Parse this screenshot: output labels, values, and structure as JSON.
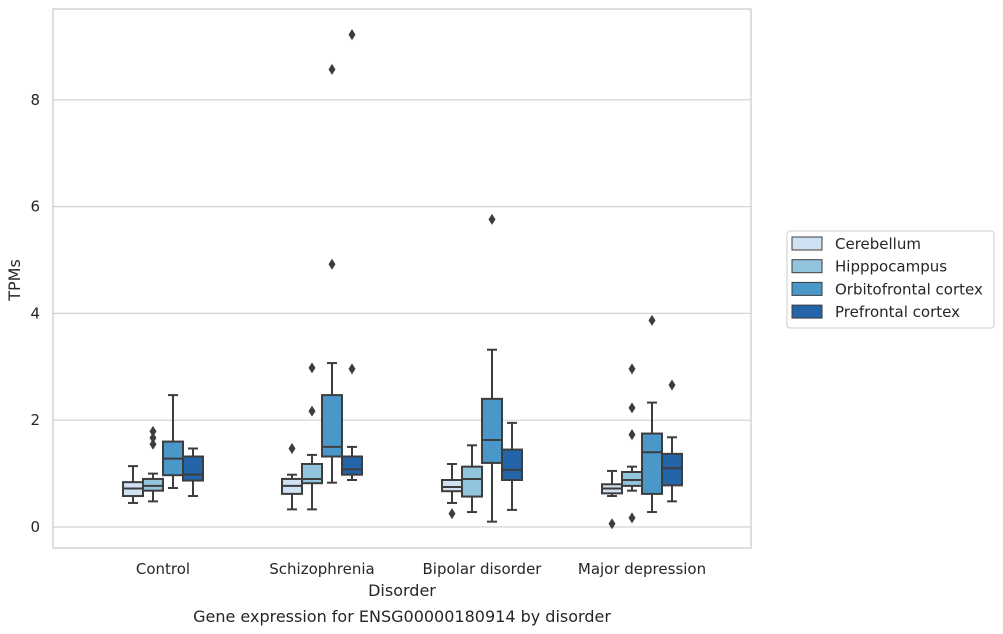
{
  "chart_data": {
    "type": "box",
    "title": "",
    "caption": "Gene expression for ENSG00000180914 by disorder",
    "xlabel": "Disorder",
    "ylabel": "TPMs",
    "ylim": [
      -0.4,
      9.8
    ],
    "yticks": [
      0,
      2,
      4,
      6,
      8
    ],
    "grid": "horizontal",
    "legend_position": "right",
    "categories": [
      "Control",
      "Schizophrenia",
      "Bipolar disorder",
      "Major depression"
    ],
    "series": [
      {
        "name": "Cerebellum",
        "color": "#cfe1f2",
        "boxes": [
          {
            "whisker_low": 0.45,
            "q1": 0.58,
            "median": 0.72,
            "q3": 0.84,
            "whisker_high": 1.14,
            "outliers": []
          },
          {
            "whisker_low": 0.33,
            "q1": 0.62,
            "median": 0.77,
            "q3": 0.9,
            "whisker_high": 0.98,
            "outliers": [
              1.47
            ]
          },
          {
            "whisker_low": 0.45,
            "q1": 0.67,
            "median": 0.75,
            "q3": 0.88,
            "whisker_high": 1.18,
            "outliers": [
              0.25
            ]
          },
          {
            "whisker_low": 0.58,
            "q1": 0.63,
            "median": 0.72,
            "q3": 0.8,
            "whisker_high": 1.05,
            "outliers": [
              0.06
            ]
          }
        ]
      },
      {
        "name": "Hipppocampus",
        "color": "#93c4de",
        "boxes": [
          {
            "whisker_low": 0.48,
            "q1": 0.68,
            "median": 0.77,
            "q3": 0.9,
            "whisker_high": 1.0,
            "outliers": [
              1.55,
              1.67,
              1.79
            ]
          },
          {
            "whisker_low": 0.33,
            "q1": 0.82,
            "median": 0.9,
            "q3": 1.18,
            "whisker_high": 1.35,
            "outliers": [
              2.17,
              2.98
            ]
          },
          {
            "whisker_low": 0.28,
            "q1": 0.57,
            "median": 0.9,
            "q3": 1.13,
            "whisker_high": 1.53,
            "outliers": []
          },
          {
            "whisker_low": 0.68,
            "q1": 0.77,
            "median": 0.88,
            "q3": 1.03,
            "whisker_high": 1.13,
            "outliers": [
              0.17,
              1.73,
              2.23,
              2.96
            ]
          }
        ]
      },
      {
        "name": "Orbitofrontal cortex",
        "color": "#4a98c9",
        "boxes": [
          {
            "whisker_low": 0.73,
            "q1": 0.97,
            "median": 1.28,
            "q3": 1.6,
            "whisker_high": 2.47,
            "outliers": []
          },
          {
            "whisker_low": 0.83,
            "q1": 1.32,
            "median": 1.5,
            "q3": 2.47,
            "whisker_high": 3.07,
            "outliers": [
              4.92,
              8.57
            ]
          },
          {
            "whisker_low": 0.1,
            "q1": 1.2,
            "median": 1.63,
            "q3": 2.4,
            "whisker_high": 3.32,
            "outliers": [
              5.76
            ]
          },
          {
            "whisker_low": 0.28,
            "q1": 0.62,
            "median": 1.4,
            "q3": 1.75,
            "whisker_high": 2.33,
            "outliers": [
              3.87
            ]
          }
        ]
      },
      {
        "name": "Prefrontal cortex",
        "color": "#2464a8",
        "boxes": [
          {
            "whisker_low": 0.58,
            "q1": 0.87,
            "median": 0.98,
            "q3": 1.32,
            "whisker_high": 1.47,
            "outliers": []
          },
          {
            "whisker_low": 0.88,
            "q1": 0.98,
            "median": 1.08,
            "q3": 1.32,
            "whisker_high": 1.5,
            "outliers": [
              2.96,
              9.22
            ]
          },
          {
            "whisker_low": 0.32,
            "q1": 0.88,
            "median": 1.07,
            "q3": 1.45,
            "whisker_high": 1.95,
            "outliers": []
          },
          {
            "whisker_low": 0.48,
            "q1": 0.78,
            "median": 1.1,
            "q3": 1.37,
            "whisker_high": 1.68,
            "outliers": [
              2.66
            ]
          }
        ]
      }
    ]
  }
}
